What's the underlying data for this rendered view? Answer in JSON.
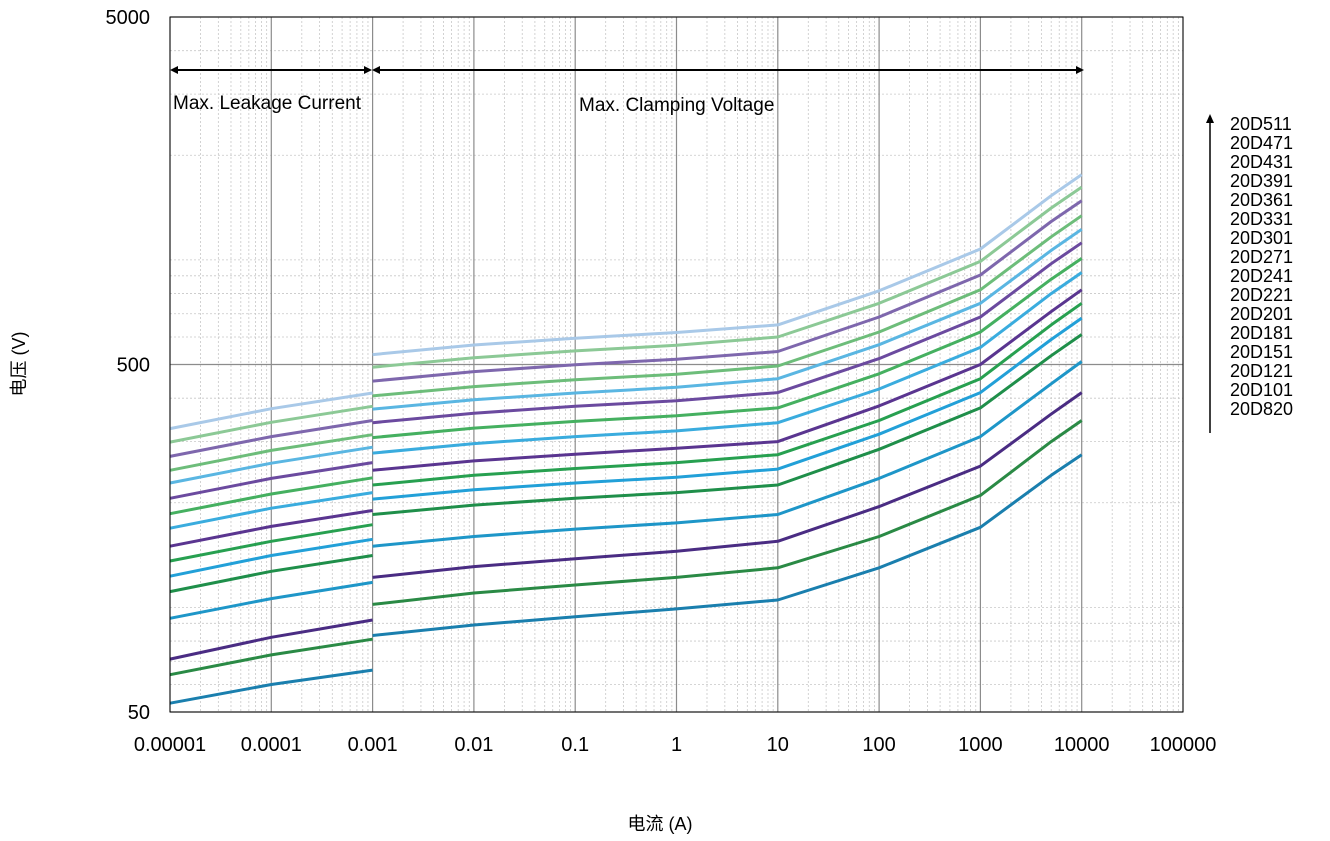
{
  "chart_data": {
    "type": "line",
    "x_scale": "log",
    "y_scale": "log",
    "xlabel": "电流 (A)",
    "ylabel": "电压 (V)",
    "xlim": [
      1e-05,
      100000
    ],
    "ylim": [
      50,
      5000
    ],
    "x_ticks": [
      "0.00001",
      "0.0001",
      "0.001",
      "0.01",
      "0.1",
      "1",
      "10",
      "100",
      "1000",
      "10000",
      "100000"
    ],
    "y_ticks": [
      "50",
      "500",
      "5000"
    ],
    "grid": "major and minor",
    "annotations": [
      {
        "text": "Max. Leakage Current",
        "x_range": [
          1e-05,
          0.001
        ]
      },
      {
        "text": "Max. Clamping Voltage",
        "x_range": [
          0.001,
          10000
        ]
      }
    ],
    "legend": {
      "placement": "right",
      "order": "top-to-bottom",
      "labels": [
        "20D511",
        "20D471",
        "20D431",
        "20D391",
        "20D361",
        "20D331",
        "20D301",
        "20D271",
        "20D241",
        "20D221",
        "20D201",
        "20D181",
        "20D151",
        "20D121",
        "20D101",
        "20D820"
      ]
    },
    "x": [
      1e-05,
      0.0001,
      0.001,
      0.001,
      0.01,
      0.1,
      1,
      10,
      100,
      1000,
      5000,
      10000
    ],
    "series": [
      {
        "name": "20D820",
        "color": "#1a7fae",
        "values": [
          53,
          60,
          66,
          83,
          89,
          94,
          99,
          105,
          130,
          170,
          240,
          275
        ]
      },
      {
        "name": "20D101",
        "color": "#2a8a45",
        "values": [
          64,
          73,
          81,
          102,
          110,
          116,
          122,
          130,
          160,
          210,
          300,
          345
        ]
      },
      {
        "name": "20D121",
        "color": "#4a2c83",
        "values": [
          71,
          82,
          92,
          122,
          131,
          138,
          145,
          155,
          195,
          255,
          360,
          415
        ]
      },
      {
        "name": "20D151",
        "color": "#1e96c8",
        "values": [
          93,
          106,
          118,
          150,
          160,
          168,
          175,
          185,
          235,
          310,
          440,
          510
        ]
      },
      {
        "name": "20D181",
        "color": "#1f8f4a",
        "values": [
          111,
          127,
          141,
          185,
          197,
          206,
          214,
          225,
          285,
          375,
          530,
          610
        ]
      },
      {
        "name": "20D201",
        "color": "#22a0d8",
        "values": [
          123,
          141,
          157,
          205,
          218,
          228,
          237,
          250,
          315,
          415,
          590,
          680
        ]
      },
      {
        "name": "20D221",
        "color": "#27a050",
        "values": [
          136,
          155,
          173,
          225,
          240,
          251,
          261,
          275,
          345,
          455,
          650,
          750
        ]
      },
      {
        "name": "20D241",
        "color": "#5a3590",
        "values": [
          150,
          171,
          190,
          248,
          264,
          276,
          287,
          300,
          380,
          500,
          710,
          820
        ]
      },
      {
        "name": "20D271",
        "color": "#3aacde",
        "values": [
          169,
          193,
          214,
          278,
          296,
          310,
          322,
          340,
          425,
          560,
          800,
          920
        ]
      },
      {
        "name": "20D301",
        "color": "#45b060",
        "values": [
          186,
          212,
          236,
          308,
          328,
          343,
          356,
          375,
          470,
          620,
          880,
          1010
        ]
      },
      {
        "name": "20D331",
        "color": "#6b4a9f",
        "values": [
          206,
          235,
          261,
          340,
          362,
          379,
          393,
          415,
          520,
          685,
          975,
          1120
        ]
      },
      {
        "name": "20D361",
        "color": "#5ab6e2",
        "values": [
          228,
          260,
          289,
          372,
          396,
          414,
          430,
          455,
          570,
          750,
          1065,
          1225
        ]
      },
      {
        "name": "20D391",
        "color": "#6dbd7a",
        "values": [
          248,
          283,
          314,
          406,
          432,
          452,
          469,
          495,
          620,
          820,
          1165,
          1340
        ]
      },
      {
        "name": "20D431",
        "color": "#7e67ad",
        "values": [
          272,
          310,
          345,
          448,
          477,
          499,
          518,
          545,
          685,
          905,
          1290,
          1480
        ]
      },
      {
        "name": "20D471",
        "color": "#8cc996",
        "values": [
          299,
          341,
          379,
          491,
          523,
          547,
          568,
          600,
          750,
          990,
          1410,
          1620
        ]
      },
      {
        "name": "20D511",
        "color": "#a9c9e8",
        "values": [
          327,
          373,
          414,
          534,
          569,
          595,
          618,
          650,
          815,
          1075,
          1530,
          1760
        ]
      }
    ]
  }
}
